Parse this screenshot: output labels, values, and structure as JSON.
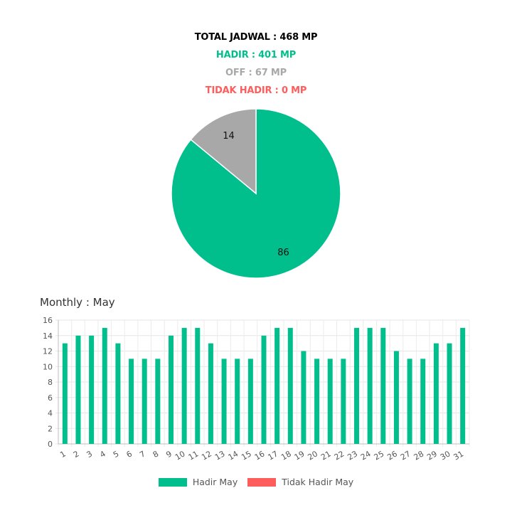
{
  "summary": {
    "total": "TOTAL JADWAL : 468 MP",
    "hadir": "HADIR : 401 MP",
    "off": "OFF : 67 MP",
    "tidak_hadir": "TIDAK HADIR : 0 MP"
  },
  "colors": {
    "hadir": "#00bf8c",
    "off": "#a8a8a8",
    "tidak_hadir": "#ff5c5c",
    "total": "#000000"
  },
  "monthly_title": "Monthly : May",
  "legend": {
    "hadir": "Hadir May",
    "tidak_hadir": "Tidak Hadir May"
  },
  "chart_data": [
    {
      "type": "pie",
      "slices": [
        {
          "value": 86,
          "label": "86",
          "color": "#00bf8c"
        },
        {
          "value": 14,
          "label": "14",
          "color": "#a8a8a8"
        }
      ]
    },
    {
      "type": "bar",
      "categories": [
        "1",
        "2",
        "3",
        "4",
        "5",
        "6",
        "7",
        "8",
        "9",
        "10",
        "11",
        "12",
        "13",
        "14",
        "15",
        "16",
        "17",
        "18",
        "19",
        "20",
        "21",
        "22",
        "23",
        "24",
        "25",
        "26",
        "27",
        "28",
        "29",
        "30",
        "31"
      ],
      "series": [
        {
          "name": "Hadir May",
          "color": "#00bf8c",
          "values": [
            13,
            14,
            14,
            15,
            13,
            11,
            11,
            11,
            14,
            15,
            15,
            13,
            11,
            11,
            11,
            14,
            15,
            15,
            12,
            11,
            11,
            11,
            15,
            15,
            15,
            12,
            11,
            11,
            13,
            13,
            15
          ]
        },
        {
          "name": "Tidak Hadir May",
          "color": "#ff5c5c",
          "values": [
            0,
            0,
            0,
            0,
            0,
            0,
            0,
            0,
            0,
            0,
            0,
            0,
            0,
            0,
            0,
            0,
            0,
            0,
            0,
            0,
            0,
            0,
            0,
            0,
            0,
            0,
            0,
            0,
            0,
            0,
            0
          ]
        }
      ],
      "yticks": [
        "0",
        "2",
        "4",
        "6",
        "8",
        "10",
        "12",
        "14",
        "16"
      ],
      "ylim": [
        0,
        16
      ],
      "grid": true,
      "legend_position": "bottom"
    }
  ]
}
